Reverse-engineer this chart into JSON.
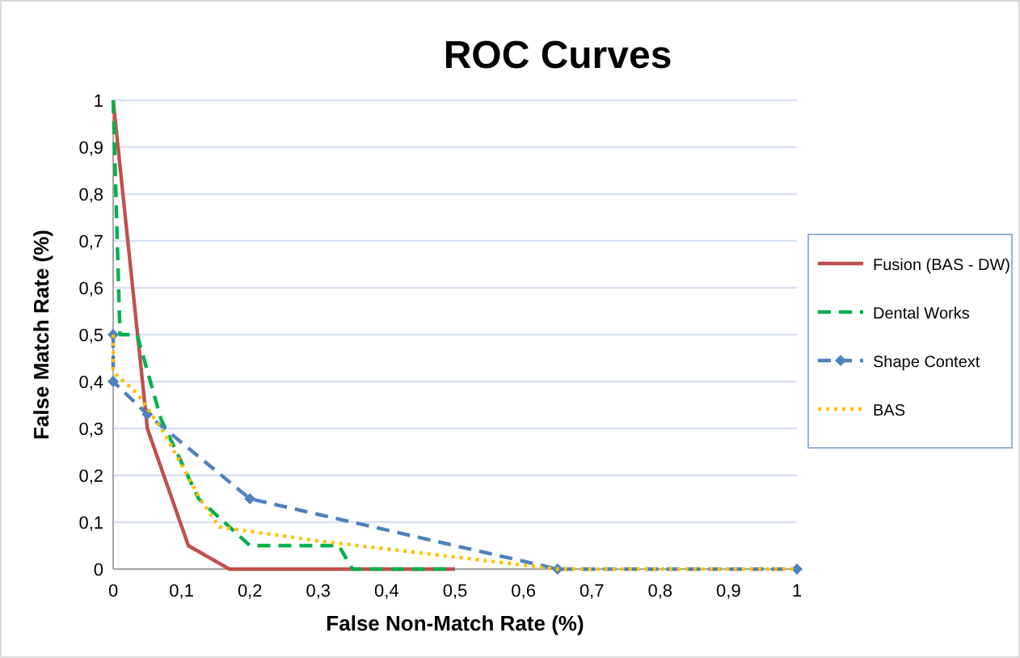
{
  "chart_data": {
    "type": "line",
    "title": "ROC Curves",
    "xlabel": "False Non-Match Rate (%)",
    "ylabel": "False Match Rate (%)",
    "xlim": [
      0,
      1
    ],
    "ylim": [
      0,
      1
    ],
    "xticks": [
      0,
      {
        "value": 0.1,
        "label": "0,1"
      },
      {
        "value": 0.2,
        "label": "0,2"
      },
      {
        "value": 0.3,
        "label": "0,3"
      },
      {
        "value": 0.4,
        "label": "0,4"
      },
      {
        "value": 0.5,
        "label": "0,5"
      },
      {
        "value": 0.6,
        "label": "0,6"
      },
      {
        "value": 0.7,
        "label": "0,7"
      },
      {
        "value": 0.8,
        "label": "0,8"
      },
      {
        "value": 0.9,
        "label": "0,9"
      },
      1
    ],
    "yticks": [
      0,
      {
        "value": 0.1,
        "label": "0,1"
      },
      {
        "value": 0.2,
        "label": "0,2"
      },
      {
        "value": 0.3,
        "label": "0,3"
      },
      {
        "value": 0.4,
        "label": "0,4"
      },
      {
        "value": 0.5,
        "label": "0,5"
      },
      {
        "value": 0.6,
        "label": "0,6"
      },
      {
        "value": 0.7,
        "label": "0,7"
      },
      {
        "value": 0.8,
        "label": "0,8"
      },
      {
        "value": 0.9,
        "label": "0,9"
      },
      1
    ],
    "grid": "y",
    "legend": "right",
    "series": [
      {
        "name": "Fusion (BAS - DW)",
        "color": "#c0504d",
        "line_style": "solid",
        "marker": "none",
        "x": [
          0,
          0.05,
          0.11,
          0.17,
          0.5
        ],
        "values": [
          1,
          0.3,
          0.05,
          0,
          0
        ]
      },
      {
        "name": "Dental Works",
        "color": "#00b050",
        "line_style": "dashed",
        "marker": "none",
        "x": [
          0,
          0.01,
          0.035,
          0.07,
          0.125,
          0.2,
          0.33,
          0.35,
          0.5
        ],
        "values": [
          1,
          0.5,
          0.5,
          0.32,
          0.15,
          0.05,
          0.05,
          0,
          0
        ]
      },
      {
        "name": "Shape Context",
        "color": "#4f81bd",
        "line_style": "dashed",
        "marker": "diamond",
        "x": [
          0,
          0,
          0.05,
          0.2,
          0.65,
          1
        ],
        "values": [
          0.5,
          0.4,
          0.33,
          0.15,
          0,
          0
        ]
      },
      {
        "name": "BAS",
        "color": "#ffc000",
        "line_style": "dotted",
        "marker": "none",
        "x": [
          0,
          0,
          0.035,
          0.075,
          0.125,
          0.155,
          0.3,
          0.65,
          1
        ],
        "values": [
          0.5,
          0.42,
          0.375,
          0.29,
          0.155,
          0.09,
          0.06,
          0,
          0
        ]
      }
    ]
  }
}
